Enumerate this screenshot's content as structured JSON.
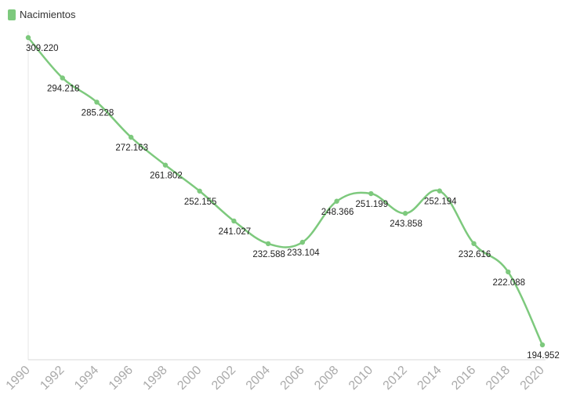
{
  "legend": {
    "label": "Nacimientos",
    "color": "#7dc97d"
  },
  "chart_data": {
    "type": "line",
    "title": "",
    "xlabel": "",
    "ylabel": "",
    "grid": false,
    "legend_position": "top-left",
    "ylim": [
      190000,
      312000
    ],
    "series": [
      {
        "name": "Nacimientos",
        "color": "#7dc97d",
        "x": [
          "1990",
          "1992",
          "1994",
          "1996",
          "1998",
          "2000",
          "2002",
          "2004",
          "2006",
          "2008",
          "2010",
          "2012",
          "2014",
          "2016",
          "2018",
          "2020"
        ],
        "values": [
          309220,
          294218,
          285228,
          272163,
          261802,
          252155,
          241027,
          232588,
          233104,
          248366,
          251199,
          243858,
          252194,
          232616,
          222088,
          194952
        ],
        "labels": [
          "309.220",
          "294.218",
          "285.228",
          "272.163",
          "261.802",
          "252.155",
          "241.027",
          "232.588",
          "233.104",
          "248.366",
          "251.199",
          "243.858",
          "252.194",
          "232.616",
          "222.088",
          "194.952"
        ]
      }
    ]
  }
}
